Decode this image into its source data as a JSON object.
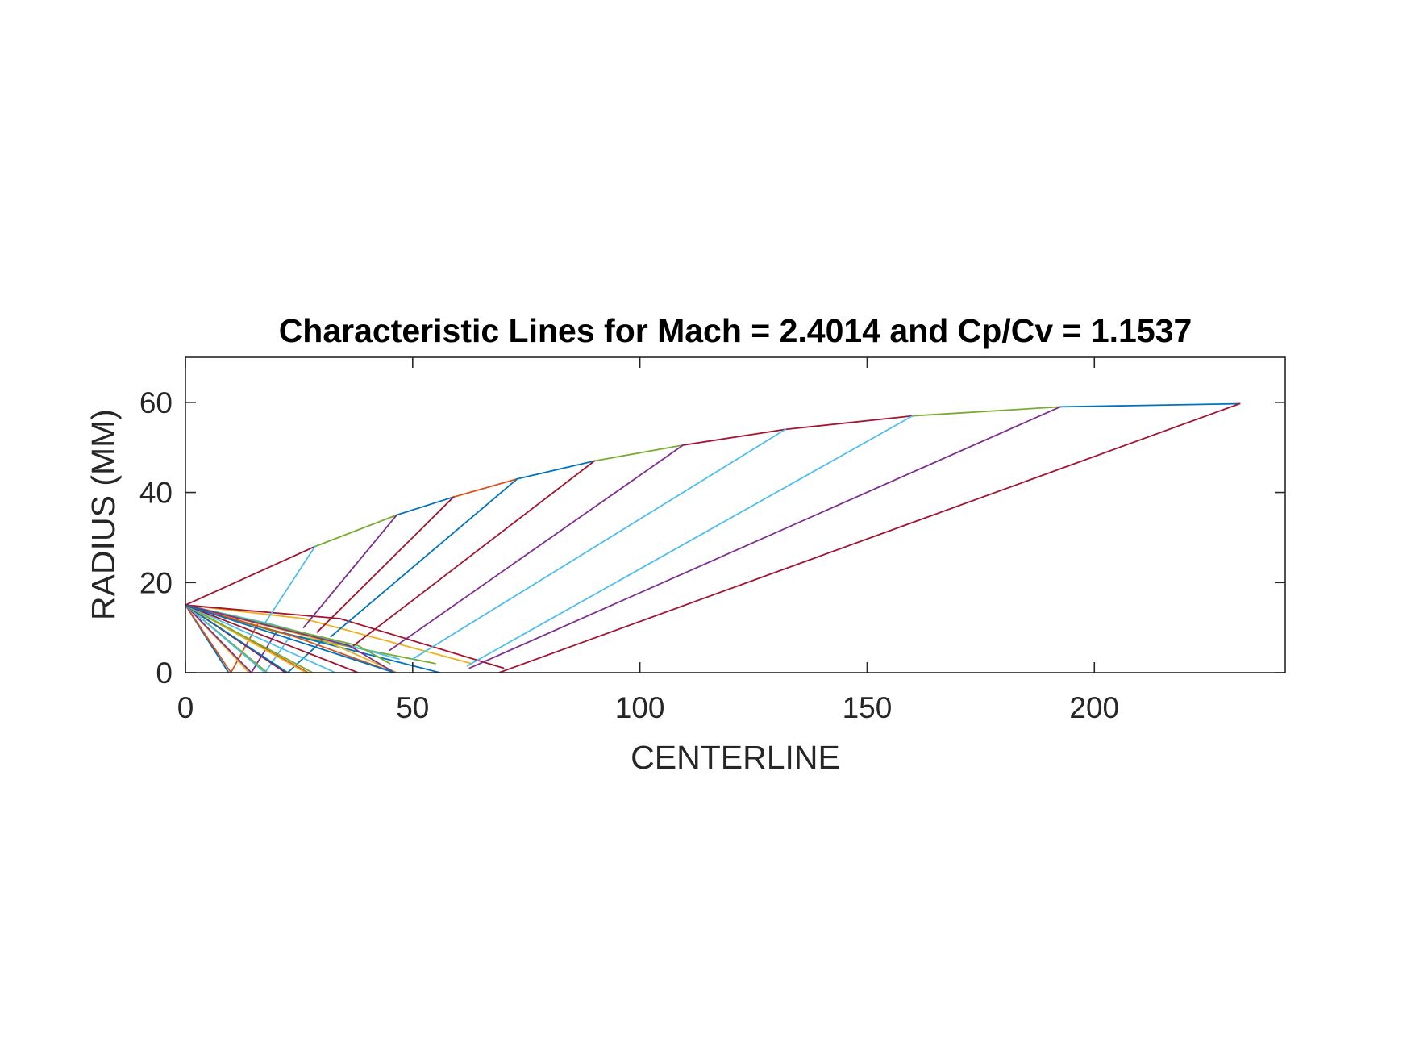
{
  "chart_data": {
    "type": "line",
    "title": "Characteristic Lines for Mach = 2.4014 and Cp/Cv = 1.1537",
    "xlabel": "CENTERLINE",
    "ylabel": "RADIUS (MM)",
    "xlim": [
      0,
      242
    ],
    "ylim": [
      0,
      70
    ],
    "xticks": [
      0,
      50,
      100,
      150,
      200
    ],
    "yticks": [
      0,
      20,
      40,
      60
    ],
    "xtick_labels": [
      "0",
      "50",
      "100",
      "150",
      "200"
    ],
    "ytick_labels": [
      "0",
      "20",
      "40",
      "60"
    ],
    "grid": false,
    "legend": "none",
    "colors": [
      "#0072BD",
      "#D95319",
      "#EDB120",
      "#7E2F8E",
      "#77AC30",
      "#4DBEEE",
      "#A2142F"
    ],
    "series": [
      {
        "color": "#0072BD",
        "x": [
          0,
          9.5
        ],
        "y": [
          15,
          0
        ]
      },
      {
        "color": "#D95319",
        "x": [
          0,
          10
        ],
        "y": [
          15,
          0
        ]
      },
      {
        "color": "#D95319",
        "x": [
          10,
          16
        ],
        "y": [
          0,
          11
        ]
      },
      {
        "color": "#EDB120",
        "x": [
          0,
          14
        ],
        "y": [
          15,
          0
        ]
      },
      {
        "color": "#EDB120",
        "x": [
          0,
          26
        ],
        "y": [
          15,
          12
        ]
      },
      {
        "color": "#EDB120",
        "x": [
          26,
          63
        ],
        "y": [
          12,
          2
        ]
      },
      {
        "color": "#7E2F8E",
        "x": [
          0,
          14.5
        ],
        "y": [
          15,
          0
        ]
      },
      {
        "color": "#7E2F8E",
        "x": [
          14.5,
          20
        ],
        "y": [
          0,
          9
        ]
      },
      {
        "color": "#77AC30",
        "x": [
          0,
          18
        ],
        "y": [
          15,
          0
        ]
      },
      {
        "color": "#77AC30",
        "x": [
          0,
          20
        ],
        "y": [
          15,
          9
        ]
      },
      {
        "color": "#77AC30",
        "x": [
          20,
          55
        ],
        "y": [
          9,
          2
        ]
      },
      {
        "color": "#4DBEEE",
        "x": [
          0,
          17.5
        ],
        "y": [
          15,
          0
        ]
      },
      {
        "color": "#4DBEEE",
        "x": [
          0,
          18
        ],
        "y": [
          15,
          11
        ]
      },
      {
        "color": "#4DBEEE",
        "x": [
          18,
          47
        ],
        "y": [
          11,
          3
        ]
      },
      {
        "color": "#4DBEEE",
        "x": [
          17.5,
          23
        ],
        "y": [
          0,
          8
        ]
      },
      {
        "color": "#A2142F",
        "x": [
          0,
          22
        ],
        "y": [
          15,
          0
        ]
      },
      {
        "color": "#A2142F",
        "x": [
          0,
          34
        ],
        "y": [
          15,
          12
        ]
      },
      {
        "color": "#A2142F",
        "x": [
          34,
          70
        ],
        "y": [
          12,
          1
        ]
      },
      {
        "color": "#0072BD",
        "x": [
          0,
          22.5
        ],
        "y": [
          15,
          0
        ]
      },
      {
        "color": "#0072BD",
        "x": [
          0,
          17
        ],
        "y": [
          15,
          10
        ]
      },
      {
        "color": "#0072BD",
        "x": [
          17,
          56
        ],
        "y": [
          10,
          0
        ]
      },
      {
        "color": "#0072BD",
        "x": [
          22.5,
          30
        ],
        "y": [
          0,
          7
        ]
      },
      {
        "color": "#D95319",
        "x": [
          0,
          27
        ],
        "y": [
          15,
          0
        ]
      },
      {
        "color": "#D95319",
        "x": [
          0,
          24
        ],
        "y": [
          15,
          8
        ]
      },
      {
        "color": "#D95319",
        "x": [
          24,
          46
        ],
        "y": [
          8,
          0
        ]
      },
      {
        "color": "#EDB120",
        "x": [
          0,
          26.5
        ],
        "y": [
          15,
          0
        ]
      },
      {
        "color": "#EDB120",
        "x": [
          0,
          31
        ],
        "y": [
          15,
          7
        ]
      },
      {
        "color": "#EDB120",
        "x": [
          31,
          46.5
        ],
        "y": [
          7,
          0
        ]
      },
      {
        "color": "#77AC30",
        "x": [
          0,
          28
        ],
        "y": [
          15,
          0
        ]
      },
      {
        "color": "#77AC30",
        "x": [
          0,
          38
        ],
        "y": [
          15,
          6
        ]
      },
      {
        "color": "#77AC30",
        "x": [
          38,
          45
        ],
        "y": [
          6,
          2
        ]
      },
      {
        "color": "#4DBEEE",
        "x": [
          0,
          33
        ],
        "y": [
          15,
          0
        ]
      },
      {
        "color": "#7E2F8E",
        "x": [
          0,
          36
        ],
        "y": [
          15,
          6
        ]
      },
      {
        "color": "#7E2F8E",
        "x": [
          36,
          46
        ],
        "y": [
          6,
          0
        ]
      },
      {
        "color": "#A2142F",
        "x": [
          0,
          38
        ],
        "y": [
          15,
          0
        ]
      },
      {
        "color": "#0072BD",
        "x": [
          0,
          46
        ],
        "y": [
          15,
          0
        ]
      },
      {
        "color": "#A2142F",
        "x": [
          0,
          28.5
        ],
        "y": [
          15,
          28
        ]
      },
      {
        "color": "#77AC30",
        "x": [
          28.5,
          46.5
        ],
        "y": [
          28,
          35
        ]
      },
      {
        "color": "#0072BD",
        "x": [
          46.5,
          59
        ],
        "y": [
          35,
          39
        ]
      },
      {
        "color": "#D95319",
        "x": [
          59,
          73
        ],
        "y": [
          39,
          43
        ]
      },
      {
        "color": "#0072BD",
        "x": [
          73,
          90
        ],
        "y": [
          43,
          47
        ]
      },
      {
        "color": "#77AC30",
        "x": [
          90,
          109.5
        ],
        "y": [
          47,
          50.5
        ]
      },
      {
        "color": "#A2142F",
        "x": [
          109.5,
          132
        ],
        "y": [
          50.5,
          54
        ]
      },
      {
        "color": "#A2142F",
        "x": [
          132,
          160
        ],
        "y": [
          54,
          57
        ]
      },
      {
        "color": "#77AC30",
        "x": [
          160,
          192.5
        ],
        "y": [
          57,
          59
        ]
      },
      {
        "color": "#0072BD",
        "x": [
          192.5,
          232
        ],
        "y": [
          59,
          59.7
        ]
      },
      {
        "color": "#4DBEEE",
        "x": [
          17.5,
          28.5
        ],
        "y": [
          11,
          28
        ]
      },
      {
        "color": "#7E2F8E",
        "x": [
          26,
          46.5
        ],
        "y": [
          10,
          35
        ]
      },
      {
        "color": "#A2142F",
        "x": [
          29,
          59
        ],
        "y": [
          9,
          39
        ]
      },
      {
        "color": "#0072BD",
        "x": [
          32,
          73
        ],
        "y": [
          8,
          43
        ]
      },
      {
        "color": "#A2142F",
        "x": [
          37,
          90
        ],
        "y": [
          6,
          47
        ]
      },
      {
        "color": "#7E2F8E",
        "x": [
          45,
          109.5
        ],
        "y": [
          5,
          50.5
        ]
      },
      {
        "color": "#4DBEEE",
        "x": [
          50,
          132
        ],
        "y": [
          3,
          54
        ]
      },
      {
        "color": "#4DBEEE",
        "x": [
          62,
          160
        ],
        "y": [
          1.5,
          57
        ]
      },
      {
        "color": "#7E2F8E",
        "x": [
          62.5,
          192.5
        ],
        "y": [
          1,
          59
        ]
      },
      {
        "color": "#A2142F",
        "x": [
          69,
          232
        ],
        "y": [
          0,
          59.7
        ]
      }
    ]
  }
}
